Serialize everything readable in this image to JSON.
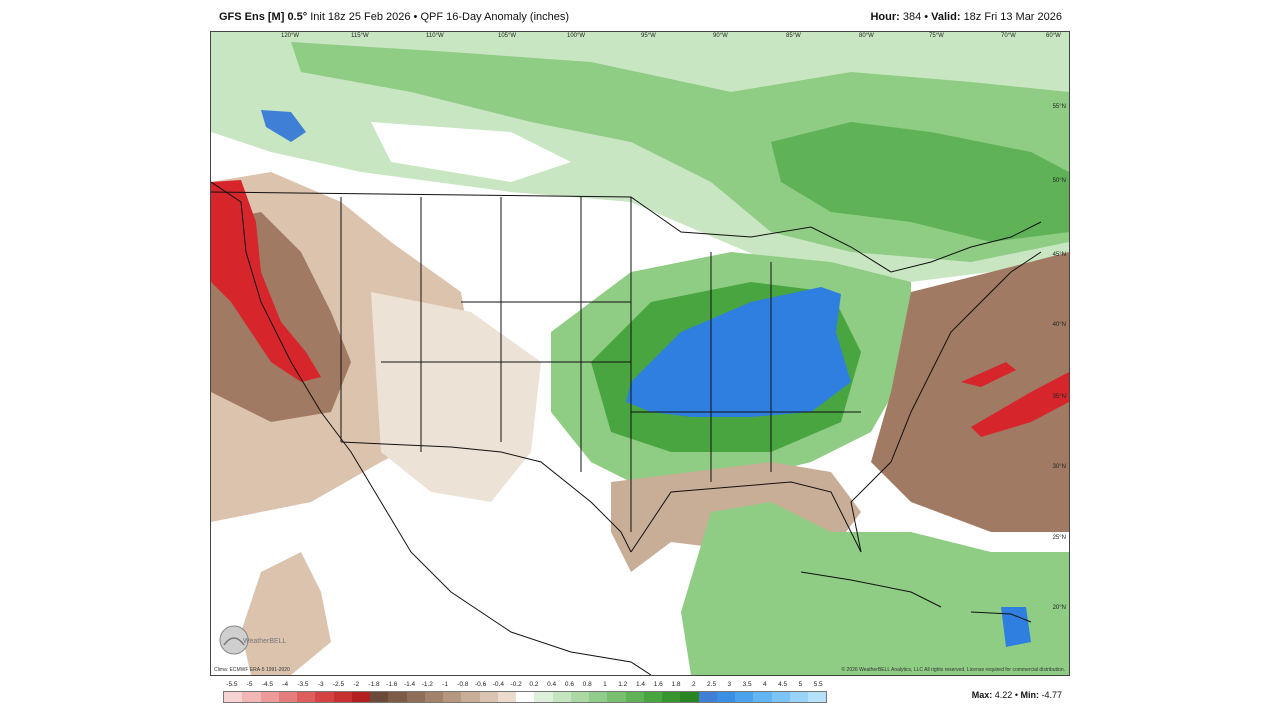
{
  "header": {
    "model": "GFS Ens [M] 0.5°",
    "init": "Init 18z 25 Feb 2026",
    "product": "QPF 16-Day Anomaly (inches)",
    "hour_label": "Hour:",
    "hour_value": "384",
    "valid_label": "Valid:",
    "valid_value": "18z Fri 13 Mar 2026"
  },
  "lon_labels": [
    "120°W",
    "115°W",
    "110°W",
    "105°W",
    "100°W",
    "95°W",
    "90°W",
    "85°W",
    "80°W",
    "75°W",
    "70°W",
    "60°W"
  ],
  "lat_labels": [
    "55°N",
    "50°N",
    "45°N",
    "40°N",
    "35°N",
    "30°N",
    "25°N",
    "20°N"
  ],
  "credit_left": "Clima: ECMWF ERA-5 1991-2020",
  "credit_right": "© 2026 WeatherBELL Analytics, LLC All rights reserved. License required for commercial distribution.",
  "logo_text": "WeatherBELL",
  "colorbar": {
    "ticks": [
      "-5.5",
      "-5",
      "-4.5",
      "-4",
      "-3.5",
      "-3",
      "-2.5",
      "-2",
      "-1.8",
      "-1.6",
      "-1.4",
      "-1.2",
      "-1",
      "-0.8",
      "-0.6",
      "-0.4",
      "-0.2",
      "0.2",
      "0.4",
      "0.6",
      "0.8",
      "1",
      "1.2",
      "1.4",
      "1.6",
      "1.8",
      "2",
      "2.5",
      "3",
      "3.5",
      "4",
      "4.5",
      "5",
      "5.5"
    ],
    "colors": [
      "#f6d3d3",
      "#f2b6b6",
      "#ec9a9a",
      "#e57c7c",
      "#de5e5e",
      "#d44343",
      "#c82f2f",
      "#b41f1f",
      "#6b4a3a",
      "#7d5b47",
      "#8f6d58",
      "#a3826c",
      "#b69881",
      "#c8ad97",
      "#dac4b1",
      "#ecdccd",
      "#ffffff",
      "#ddf0da",
      "#c4e5bf",
      "#abd9a4",
      "#91cd8a",
      "#78c06f",
      "#5fb356",
      "#48a540",
      "#37952f",
      "#2a8424",
      "#3f7fd6",
      "#3a8fe4",
      "#4aa2ee",
      "#62b4f2",
      "#7bc4f5",
      "#98d3f8",
      "#b6e1fa"
    ]
  },
  "maxmin": {
    "max_label": "Max:",
    "max_value": "4.22",
    "min_label": "Min:",
    "min_value": "-4.77"
  },
  "colors": {
    "wet_blue": "#2f7fe0",
    "wet_green": "#5fb356",
    "light_green": "#b8dfb0",
    "dry_brown": "#a07a62",
    "light_brown": "#dcc3ae",
    "dry_red": "#d7262b"
  }
}
